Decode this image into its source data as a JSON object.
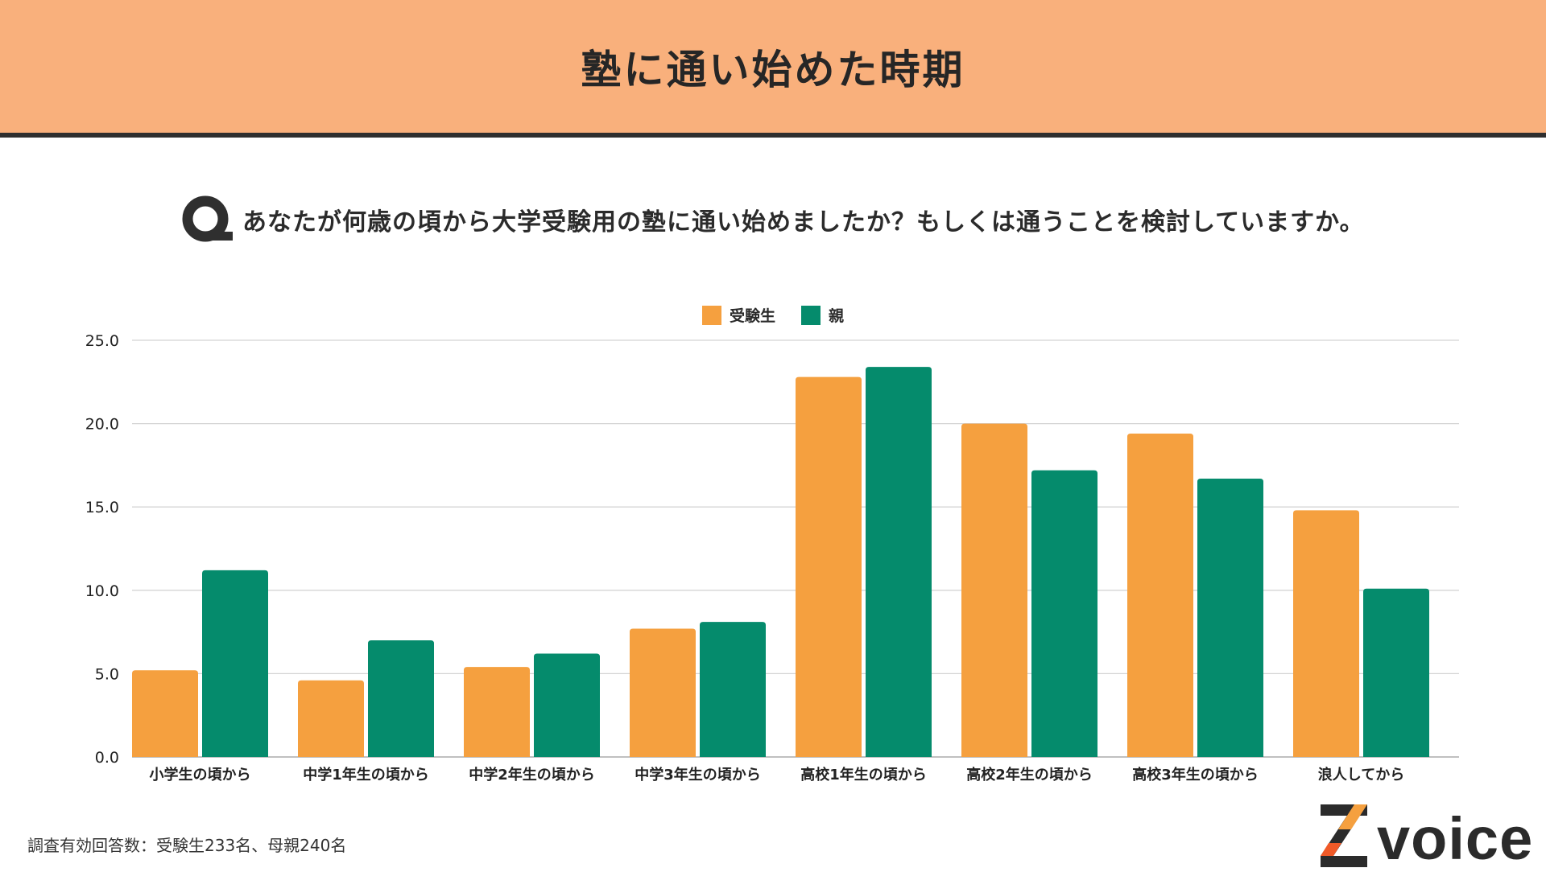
{
  "header": {
    "title": "塾に通い始めた時期"
  },
  "question": {
    "text": "あなたが何歳の頃から大学受験用の塾に通い始めましたか？もしくは通うことを検討していますか。"
  },
  "footnote": {
    "text": "調査有効回答数：受験生233名、母親240名"
  },
  "brand": {
    "name": "voice"
  },
  "chart_data": {
    "type": "bar",
    "title": "",
    "xlabel": "",
    "ylabel": "",
    "ylim": [
      0,
      25
    ],
    "yticks": [
      0,
      5,
      10,
      15,
      20,
      25
    ],
    "ytick_labels": [
      "0.0",
      "5.0",
      "10.0",
      "15.0",
      "20.0",
      "25.0"
    ],
    "grid": true,
    "legend_position": "top-center",
    "categories": [
      "小学生の頃から",
      "中学1年生の頃から",
      "中学2年生の頃から",
      "中学3年生の頃から",
      "高校1年生の頃から",
      "高校2年生の頃から",
      "高校3年生の頃から",
      "浪人してから"
    ],
    "series": [
      {
        "name": "受験生",
        "color": "#f5a03f",
        "values": [
          5.2,
          4.6,
          5.4,
          7.7,
          22.8,
          20.0,
          19.4,
          14.8
        ]
      },
      {
        "name": "親",
        "color": "#058b6c",
        "values": [
          11.2,
          7.0,
          6.2,
          8.1,
          23.4,
          17.2,
          16.7,
          10.1
        ]
      }
    ]
  }
}
